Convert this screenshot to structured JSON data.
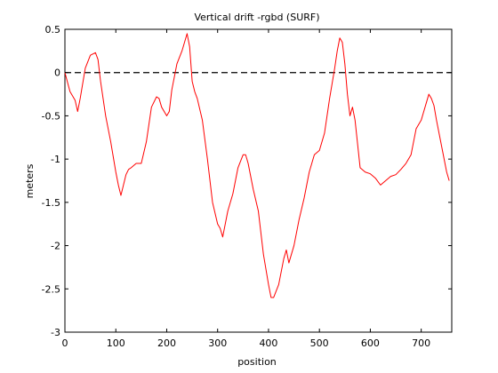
{
  "chart_data": {
    "type": "line",
    "title": "Vertical drift -rgbd (SURF)",
    "xlabel": "position",
    "ylabel": "meters",
    "xlim": [
      0,
      760
    ],
    "ylim": [
      -3,
      0.5
    ],
    "xticks": [
      0,
      100,
      200,
      300,
      400,
      500,
      600,
      700
    ],
    "yticks": [
      0.5,
      0,
      -0.5,
      -1,
      -1.5,
      -2,
      -2.5,
      -3
    ],
    "ytick_labels": [
      "0.5",
      "0",
      "-0.5",
      "-1",
      "-1.5",
      "-2",
      "-2.5",
      "-3"
    ],
    "grid": false,
    "reference_line": {
      "y": 0,
      "style": "dashed",
      "color": "#000000"
    },
    "series": [
      {
        "color": "#ff0000",
        "x": [
          0,
          10,
          20,
          25,
          30,
          40,
          50,
          60,
          65,
          70,
          80,
          90,
          100,
          105,
          110,
          115,
          120,
          125,
          130,
          140,
          150,
          160,
          170,
          180,
          185,
          190,
          200,
          205,
          210,
          220,
          230,
          235,
          240,
          245,
          250,
          255,
          260,
          270,
          280,
          290,
          300,
          305,
          310,
          315,
          320,
          330,
          340,
          350,
          355,
          360,
          370,
          380,
          390,
          400,
          405,
          410,
          420,
          430,
          435,
          440,
          450,
          460,
          470,
          480,
          490,
          500,
          510,
          520,
          530,
          535,
          540,
          545,
          550,
          555,
          560,
          565,
          570,
          580,
          590,
          600,
          610,
          620,
          630,
          640,
          650,
          660,
          670,
          680,
          690,
          700,
          710,
          715,
          720,
          725,
          730,
          740,
          750,
          755
        ],
        "y": [
          0,
          -0.22,
          -0.32,
          -0.45,
          -0.3,
          0.05,
          0.2,
          0.23,
          0.15,
          -0.1,
          -0.5,
          -0.8,
          -1.15,
          -1.3,
          -1.42,
          -1.3,
          -1.18,
          -1.12,
          -1.1,
          -1.05,
          -1.05,
          -0.8,
          -0.4,
          -0.28,
          -0.3,
          -0.4,
          -0.5,
          -0.45,
          -0.2,
          0.1,
          0.25,
          0.35,
          0.45,
          0.3,
          -0.1,
          -0.22,
          -0.3,
          -0.55,
          -1.0,
          -1.5,
          -1.75,
          -1.8,
          -1.9,
          -1.75,
          -1.6,
          -1.4,
          -1.1,
          -0.95,
          -0.95,
          -1.05,
          -1.35,
          -1.6,
          -2.1,
          -2.45,
          -2.6,
          -2.6,
          -2.45,
          -2.15,
          -2.05,
          -2.2,
          -2.0,
          -1.7,
          -1.45,
          -1.15,
          -0.95,
          -0.9,
          -0.7,
          -0.3,
          0.05,
          0.25,
          0.4,
          0.35,
          0.1,
          -0.25,
          -0.5,
          -0.4,
          -0.55,
          -1.1,
          -1.15,
          -1.17,
          -1.22,
          -1.3,
          -1.25,
          -1.2,
          -1.18,
          -1.12,
          -1.05,
          -0.95,
          -0.65,
          -0.55,
          -0.35,
          -0.25,
          -0.3,
          -0.38,
          -0.55,
          -0.85,
          -1.15,
          -1.25
        ]
      }
    ]
  }
}
